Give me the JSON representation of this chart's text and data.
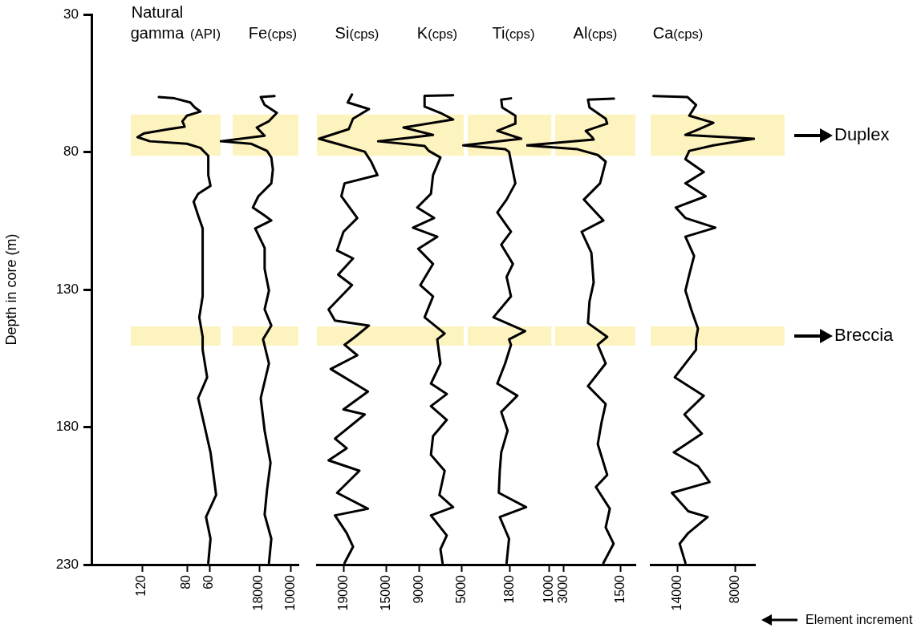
{
  "chart_data": [
    {
      "type": "line",
      "orientation": "horizontal",
      "title": "Natural gamma $_{(API)}$",
      "ylabel": "Depth in core (m)",
      "xlim": [
        165,
        50
      ],
      "xticks": [
        120,
        80,
        60
      ],
      "ylim": [
        230,
        30
      ],
      "yticks": [
        30,
        80,
        130,
        180,
        230
      ],
      "grid": false,
      "bands": [
        {
          "axis": "y",
          "from": 66.4,
          "to": 81.4,
          "color": "#fdf3bf"
        },
        {
          "axis": "y",
          "from": 143.4,
          "to": 150.4,
          "color": "#fdf3bf"
        }
      ],
      "series": [
        {
          "color": "#000000",
          "x": [
            60.0,
            60.5,
            62.0,
            63.8,
            65.3,
            66.8,
            68.8,
            70.8,
            71.7,
            73.2,
            74.6,
            76.1,
            77.0,
            78.5,
            81.4,
            88.4,
            92.3,
            95.2,
            98.1,
            103.1,
            107.8,
            112.8,
            122.5,
            132.5,
            140.1,
            147.2,
            151.9,
            161.9,
            169.5,
            176.6,
            189.2,
            204.7,
            212.7,
            220.6,
            229.4
          ],
          "values": [
            105,
            91,
            77,
            73,
            68,
            80,
            84,
            82,
            96,
            118,
            124,
            113,
            80,
            68,
            61,
            61,
            59,
            70,
            74,
            70,
            66,
            66,
            66,
            66,
            69,
            66,
            66,
            62,
            70,
            66,
            59,
            54,
            63,
            59,
            61
          ]
        }
      ]
    },
    {
      "type": "line",
      "orientation": "horizontal",
      "title": "Fe$_{(cps)}$",
      "xlim": [
        28000,
        8000
      ],
      "xticks": [
        18000,
        10000
      ],
      "ylim": [
        230,
        30
      ],
      "yticks": [
        30,
        80,
        130,
        180,
        230
      ],
      "tick_labels": "x",
      "grid": false,
      "bands": [
        {
          "axis": "y",
          "from": 66.4,
          "to": 81.4,
          "color": "#fdf3bf"
        },
        {
          "axis": "y",
          "from": 143.4,
          "to": 150.4,
          "color": "#fdf3bf"
        }
      ],
      "series": [
        {
          "color": "#000000",
          "x": [
            59.7,
            60.0,
            62.9,
            65.8,
            68.8,
            71.1,
            74.1,
            76.1,
            77.0,
            79.6,
            82.0,
            86.4,
            91.4,
            96.1,
            100.2,
            103.1,
            104.9,
            107.8,
            114.9,
            122.5,
            130.4,
            137.2,
            143.1,
            148.1,
            156.9,
            169.5,
            181.3,
            193.0,
            203.0,
            211.8,
            220.6,
            229.4
          ],
          "values": [
            14100,
            17600,
            16600,
            13500,
            15500,
            18600,
            16600,
            27800,
            20100,
            16000,
            14900,
            14500,
            14900,
            18200,
            19600,
            16600,
            14900,
            19000,
            16600,
            16600,
            15500,
            16600,
            14900,
            17000,
            15500,
            17600,
            16600,
            15100,
            16000,
            16600,
            14900,
            15500
          ]
        }
      ]
    },
    {
      "type": "line",
      "orientation": "horizontal",
      "title": "Si$_{(cps)}$",
      "xlim": [
        21500,
        13500
      ],
      "xticks": [
        19000,
        15000
      ],
      "ylim": [
        230,
        30
      ],
      "yticks": [
        30,
        80,
        130,
        180,
        230
      ],
      "tick_labels": "x",
      "grid": false,
      "bands": [
        {
          "axis": "y",
          "from": 66.4,
          "to": 81.4,
          "color": "#fdf3bf"
        },
        {
          "axis": "y",
          "from": 143.4,
          "to": 150.4,
          "color": "#fdf3bf"
        }
      ],
      "series": [
        {
          "color": "#000000",
          "x": [
            59.1,
            62.0,
            64.4,
            67.9,
            71.7,
            75.2,
            77.0,
            79.9,
            83.5,
            88.4,
            91.4,
            96.1,
            104.0,
            109.0,
            115.8,
            118.7,
            124.6,
            128.4,
            137.2,
            141.3,
            143.1,
            147.2,
            150.1,
            153.9,
            158.9,
            167.1,
            173.6,
            175.4,
            184.2,
            187.7,
            192.1,
            195.9,
            203.9,
            209.7,
            212.1,
            218.5,
            223.5,
            229.4
          ],
          "values": [
            18200,
            18600,
            16600,
            18100,
            18500,
            21300,
            19600,
            17000,
            16400,
            15800,
            18900,
            19200,
            17700,
            19000,
            19600,
            18100,
            19500,
            18200,
            20400,
            19800,
            16600,
            17900,
            18900,
            17700,
            20200,
            16700,
            19000,
            17000,
            19800,
            18700,
            20400,
            17500,
            19600,
            16700,
            19800,
            18700,
            18100,
            18900
          ]
        }
      ]
    },
    {
      "type": "line",
      "orientation": "horizontal",
      "title": "K$_{(cps)}$",
      "xlim": [
        13000,
        4800
      ],
      "xticks": [
        9000,
        5000
      ],
      "ylim": [
        230,
        30
      ],
      "yticks": [
        30,
        80,
        130,
        180,
        230
      ],
      "tick_labels": "x",
      "grid": false,
      "bands": [
        {
          "axis": "y",
          "from": 66.4,
          "to": 81.4,
          "color": "#fdf3bf"
        },
        {
          "axis": "y",
          "from": 143.4,
          "to": 150.4,
          "color": "#fdf3bf"
        }
      ],
      "series": [
        {
          "color": "#000000",
          "x": [
            59.4,
            59.6,
            63.5,
            65.8,
            68.2,
            71.1,
            73.8,
            76.1,
            77.8,
            79.6,
            82.0,
            88.4,
            95.2,
            100.2,
            104.0,
            107.5,
            110.8,
            115.2,
            120.7,
            128.4,
            132.5,
            140.1,
            146.0,
            148.1,
            156.9,
            164.2,
            168.0,
            172.4,
            177.4,
            183.3,
            190.1,
            195.9,
            204.7,
            209.1,
            212.1,
            219.4,
            224.4,
            229.4
          ],
          "values": [
            5800,
            8500,
            8500,
            7000,
            5800,
            10500,
            7700,
            12900,
            8500,
            8100,
            7000,
            7700,
            7900,
            9200,
            7600,
            9600,
            7300,
            9100,
            7700,
            8900,
            7700,
            8500,
            6600,
            7300,
            7000,
            7900,
            6400,
            7900,
            6400,
            7700,
            7900,
            6600,
            7100,
            5800,
            7900,
            6400,
            7000,
            6800
          ]
        }
      ]
    },
    {
      "type": "line",
      "orientation": "horizontal",
      "title": "Ti$_{(cps)}$",
      "xlim": [
        2800,
        950
      ],
      "xticks": [
        1800,
        1000
      ],
      "ylim": [
        230,
        30
      ],
      "yticks": [
        30,
        80,
        130,
        180,
        230
      ],
      "tick_labels": "x",
      "grid": false,
      "bands": [
        {
          "axis": "y",
          "from": 66.4,
          "to": 81.4,
          "color": "#fdf3bf"
        },
        {
          "axis": "y",
          "from": 143.4,
          "to": 150.4,
          "color": "#fdf3bf"
        }
      ],
      "series": [
        {
          "color": "#000000",
          "x": [
            60.5,
            61.0,
            63.8,
            66.8,
            69.7,
            72.3,
            75.2,
            77.6,
            79.0,
            79.9,
            83.5,
            91.4,
            97.3,
            102.0,
            109.0,
            113.7,
            120.7,
            125.4,
            132.5,
            140.1,
            145.1,
            148.1,
            150.1,
            156.9,
            164.2,
            168.6,
            174.5,
            181.3,
            189.2,
            195.9,
            203.9,
            209.1,
            212.7,
            220.6,
            229.4
          ],
          "values": [
            1780,
            1980,
            1960,
            1690,
            1690,
            2060,
            1570,
            2760,
            1900,
            1820,
            1780,
            1690,
            1870,
            2060,
            1780,
            1980,
            1740,
            1870,
            1780,
            2140,
            1490,
            1820,
            1780,
            1900,
            2060,
            1650,
            1980,
            1850,
            1980,
            2010,
            2030,
            1470,
            2010,
            1820,
            1870
          ]
        }
      ]
    },
    {
      "type": "line",
      "orientation": "horizontal",
      "title": "Al$_{(cps)}$",
      "xlim": [
        4000,
        1100
      ],
      "xticks": [
        3000,
        1500
      ],
      "ylim": [
        230,
        30
      ],
      "yticks": [
        30,
        80,
        130,
        180,
        230
      ],
      "tick_labels": "x",
      "grid": false,
      "bands": [
        {
          "axis": "y",
          "from": 66.4,
          "to": 81.4,
          "color": "#fdf3bf"
        },
        {
          "axis": "y",
          "from": 143.4,
          "to": 150.4,
          "color": "#fdf3bf"
        }
      ],
      "series": [
        {
          "color": "#000000",
          "x": [
            60.6,
            61.0,
            63.8,
            67.9,
            69.7,
            72.3,
            74.6,
            75.5,
            77.6,
            79.0,
            81.1,
            83.5,
            91.4,
            97.3,
            104.9,
            109.0,
            116.6,
            127.5,
            134.3,
            142.2,
            147.2,
            150.1,
            156.9,
            165.1,
            171.6,
            178.3,
            186.2,
            197.4,
            201.8,
            209.7,
            216.5,
            222.4,
            229.4
          ],
          "values": [
            1670,
            2360,
            2320,
            1890,
            1850,
            2420,
            2250,
            2210,
            3990,
            2640,
            2100,
            1890,
            2040,
            2470,
            1950,
            2530,
            2270,
            2210,
            2320,
            2360,
            1850,
            2100,
            1890,
            2360,
            1890,
            2000,
            2100,
            1850,
            2150,
            1780,
            1890,
            1680,
            1950
          ]
        }
      ]
    },
    {
      "type": "line",
      "orientation": "horizontal",
      "title": "Ca$_{(cps)}$",
      "xlim": [
        16800,
        6000
      ],
      "xticks": [
        14000,
        8000
      ],
      "ylim": [
        230,
        30
      ],
      "yticks": [
        30,
        80,
        130,
        180,
        230
      ],
      "tick_labels": "x",
      "grid": false,
      "bands": [
        {
          "axis": "y",
          "from": 66.4,
          "to": 81.4,
          "color": "#fdf3bf",
          "label": "Duplex"
        },
        {
          "axis": "y",
          "from": 143.4,
          "to": 150.4,
          "color": "#fdf3bf",
          "label": "Breccia"
        }
      ],
      "annotations": [
        "Element increment"
      ],
      "series": [
        {
          "color": "#000000",
          "x": [
            59.7,
            60.0,
            62.9,
            66.8,
            69.4,
            71.7,
            73.8,
            75.2,
            77.6,
            79.6,
            82.6,
            87.3,
            91.4,
            96.1,
            100.2,
            104.0,
            107.5,
            110.8,
            117.8,
            124.6,
            130.4,
            137.2,
            144.2,
            148.1,
            151.9,
            161.9,
            168.6,
            175.4,
            182.4,
            189.2,
            194.2,
            200.0,
            203.9,
            210.6,
            212.7,
            218.5,
            222.4,
            229.4
          ],
          "values": [
            16500,
            13000,
            12100,
            12800,
            10300,
            11800,
            13200,
            6100,
            10300,
            12800,
            13200,
            11300,
            13200,
            11100,
            14200,
            13200,
            10100,
            13200,
            12300,
            12800,
            13200,
            12600,
            11900,
            12100,
            12100,
            14300,
            11300,
            13300,
            11500,
            14400,
            11900,
            10700,
            14600,
            12900,
            10900,
            12900,
            13800,
            13200
          ]
        }
      ]
    }
  ]
}
